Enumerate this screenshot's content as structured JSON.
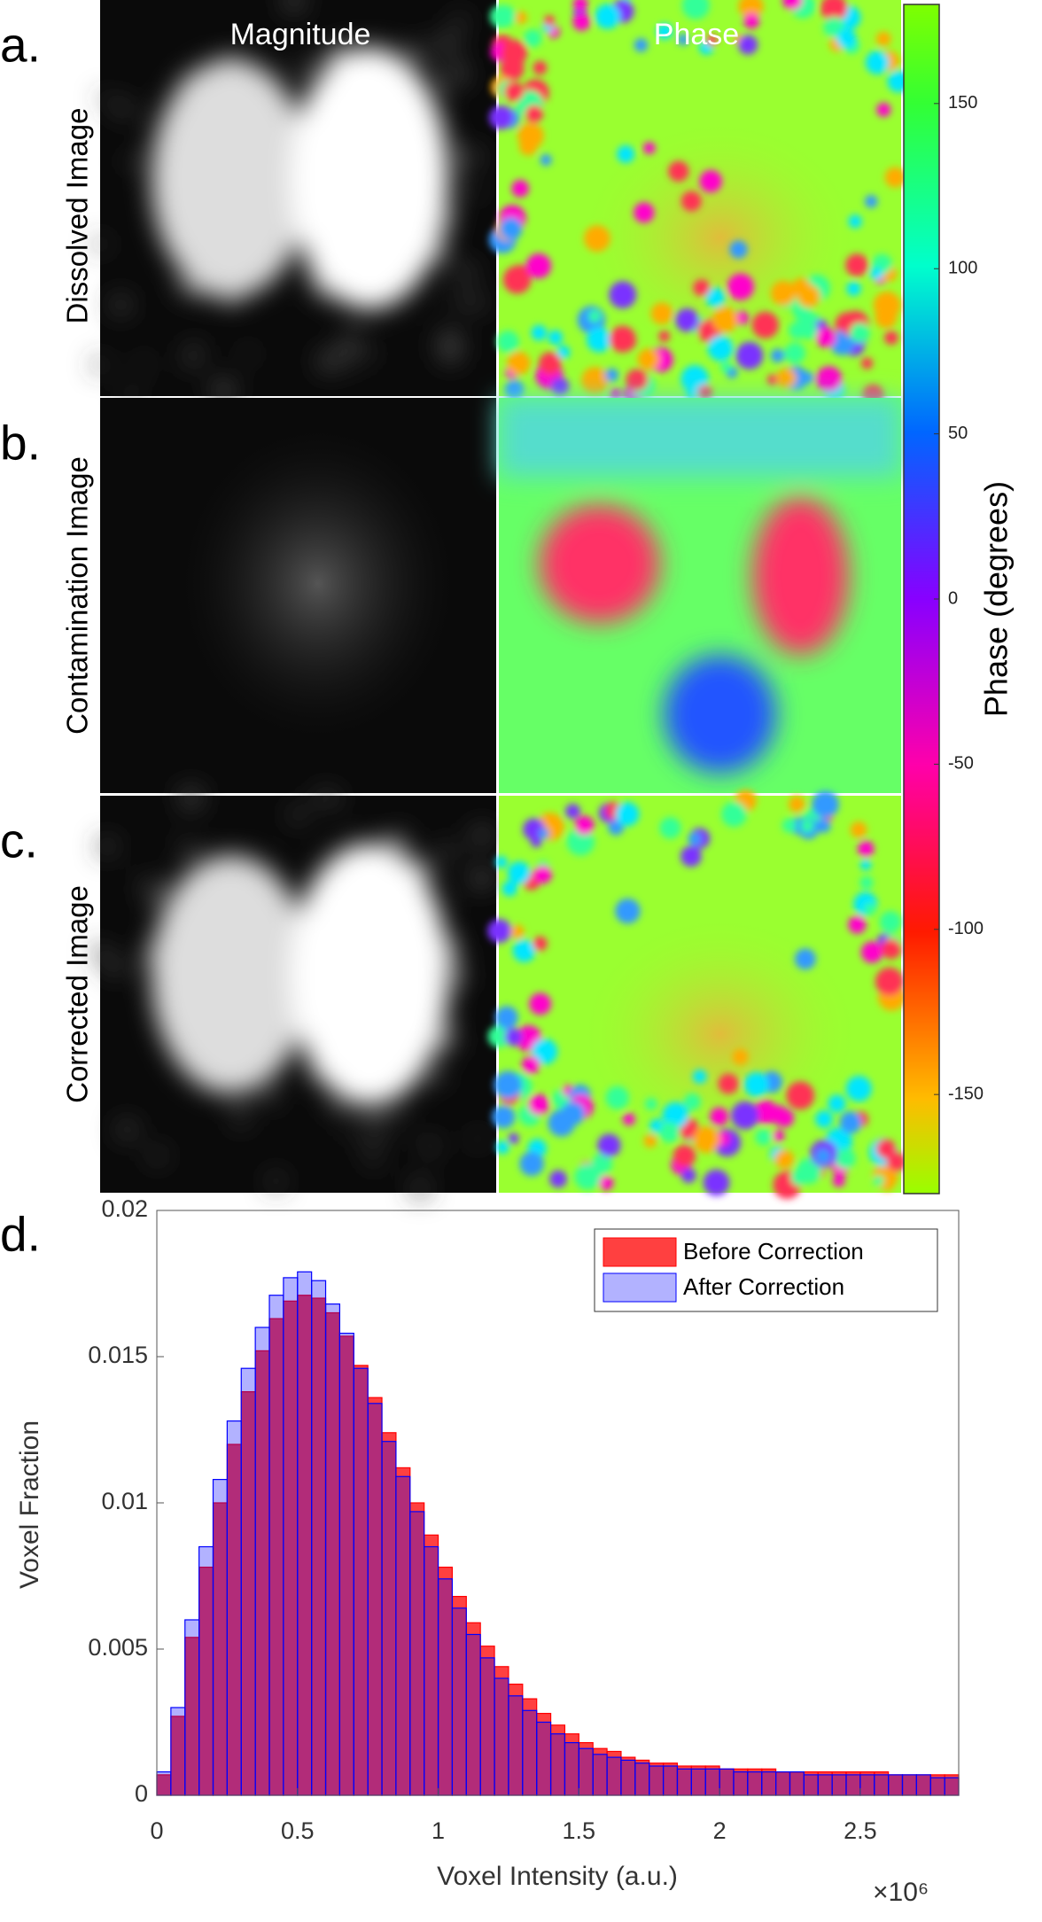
{
  "column_titles": [
    "Magnitude",
    "Phase"
  ],
  "panels": [
    {
      "letter": "a.",
      "label": "Dissolved Image"
    },
    {
      "letter": "b.",
      "label": "Contamination Image"
    },
    {
      "letter": "c.",
      "label": "Corrected Image"
    }
  ],
  "colorbar": {
    "label": "Phase (degrees)",
    "clim": [
      -180,
      180
    ],
    "ticks": [
      150,
      100,
      50,
      0,
      -50,
      -100,
      -150
    ]
  },
  "chart_data": {
    "type": "histogram",
    "panel_letter": "d.",
    "x_label": "Voxel Intensity (a.u.)",
    "y_label": "Voxel Fraction",
    "x_multiplier": "×10⁶",
    "bins": [
      0,
      50000,
      100000,
      150000,
      200000,
      250000,
      300000,
      350000,
      400000,
      450000,
      500000,
      550000,
      600000,
      650000,
      700000,
      750000,
      800000,
      850000,
      900000,
      950000,
      1000000,
      1050000,
      1100000,
      1150000,
      1200000,
      1250000,
      1300000,
      1350000,
      1400000,
      1450000,
      1500000,
      1550000,
      1600000,
      1650000,
      1700000,
      1750000,
      1800000,
      1850000,
      1900000,
      1950000,
      2000000,
      2050000,
      2100000,
      2150000,
      2200000,
      2250000,
      2300000,
      2350000,
      2400000,
      2450000,
      2500000,
      2550000,
      2600000,
      2650000,
      2700000,
      2750000,
      2800000,
      2850000
    ],
    "series": [
      {
        "name": "Before Correction",
        "color": "#ff0000",
        "values": [
          0.0007,
          0.0027,
          0.0054,
          0.0078,
          0.01,
          0.012,
          0.0138,
          0.0152,
          0.0163,
          0.0169,
          0.0171,
          0.017,
          0.0165,
          0.0157,
          0.0147,
          0.0136,
          0.0124,
          0.0112,
          0.01,
          0.0089,
          0.0078,
          0.0068,
          0.0059,
          0.0051,
          0.0044,
          0.0038,
          0.0033,
          0.0028,
          0.0024,
          0.0021,
          0.0018,
          0.0016,
          0.0015,
          0.0013,
          0.0012,
          0.0011,
          0.0011,
          0.001,
          0.001,
          0.001,
          0.0009,
          0.0009,
          0.0009,
          0.0009,
          0.0008,
          0.0008,
          0.0008,
          0.0008,
          0.0008,
          0.0008,
          0.0008,
          0.0008,
          0.0007,
          0.0007,
          0.0007,
          0.0007,
          0.0007
        ]
      },
      {
        "name": "After Correction",
        "color": "#0000ff",
        "values": [
          0.0008,
          0.003,
          0.006,
          0.0085,
          0.0108,
          0.0128,
          0.0146,
          0.016,
          0.0171,
          0.0177,
          0.0179,
          0.0176,
          0.0168,
          0.0158,
          0.0146,
          0.0134,
          0.0121,
          0.0109,
          0.0097,
          0.0085,
          0.0074,
          0.0064,
          0.0055,
          0.0047,
          0.004,
          0.0034,
          0.0029,
          0.0025,
          0.0021,
          0.0018,
          0.0016,
          0.0014,
          0.0013,
          0.0012,
          0.0011,
          0.001,
          0.001,
          0.0009,
          0.0009,
          0.0009,
          0.0009,
          0.0008,
          0.0008,
          0.0008,
          0.0008,
          0.0008,
          0.0007,
          0.0007,
          0.0007,
          0.0007,
          0.0007,
          0.0007,
          0.0007,
          0.0007,
          0.0007,
          0.0006,
          0.0006
        ]
      }
    ],
    "xlim": [
      0,
      2850000
    ],
    "ylim": [
      0,
      0.02
    ],
    "xticks": [
      0,
      {
        "value": 500000,
        "label": "0.5"
      },
      {
        "value": 1000000,
        "label": "1"
      },
      {
        "value": 1500000,
        "label": "1.5"
      },
      {
        "value": 2000000,
        "label": "2"
      },
      {
        "value": 2500000,
        "label": "2.5"
      }
    ],
    "yticks": [
      0,
      0.005,
      0.01,
      0.015,
      0.02
    ],
    "legend": "upper right"
  }
}
